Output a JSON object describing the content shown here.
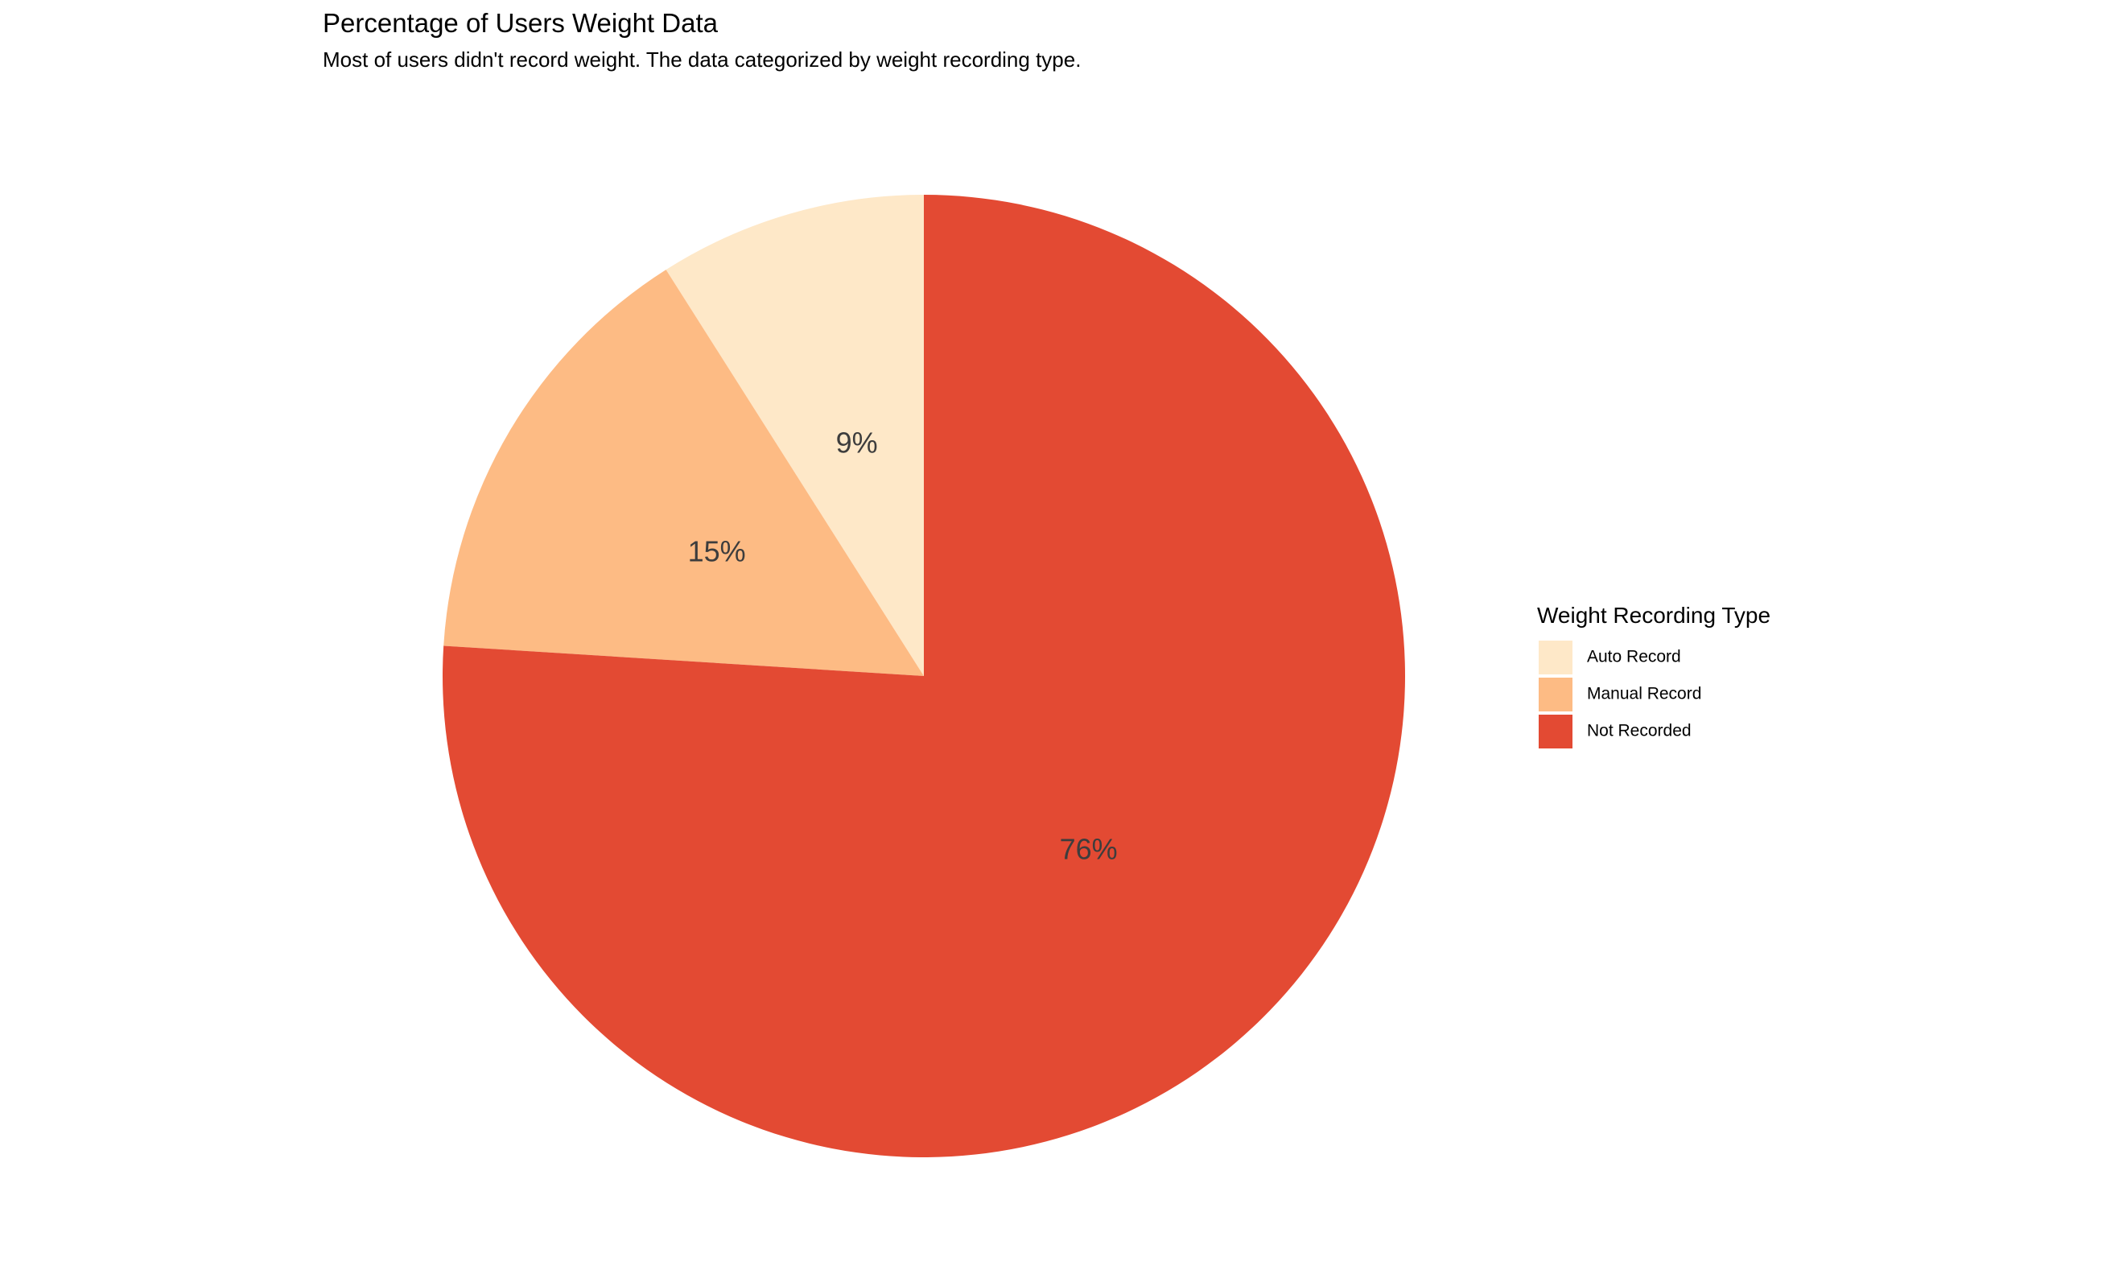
{
  "chart_data": {
    "type": "pie",
    "title": "Percentage of Users Weight Data",
    "subtitle": "Most of users didn't record weight. The data categorized by weight recording type.",
    "legend": {
      "title": "Weight Recording Type",
      "placement": "right"
    },
    "slices": [
      {
        "name": "Auto Record",
        "value": 9,
        "label": "9%",
        "color": "#fee8c8"
      },
      {
        "name": "Manual Record",
        "value": 15,
        "label": "15%",
        "color": "#fdbb84"
      },
      {
        "name": "Not Recorded",
        "value": 76,
        "label": "76%",
        "color": "#e34a33"
      }
    ],
    "direction": "counterclockwise",
    "start_angle_deg": 0
  }
}
